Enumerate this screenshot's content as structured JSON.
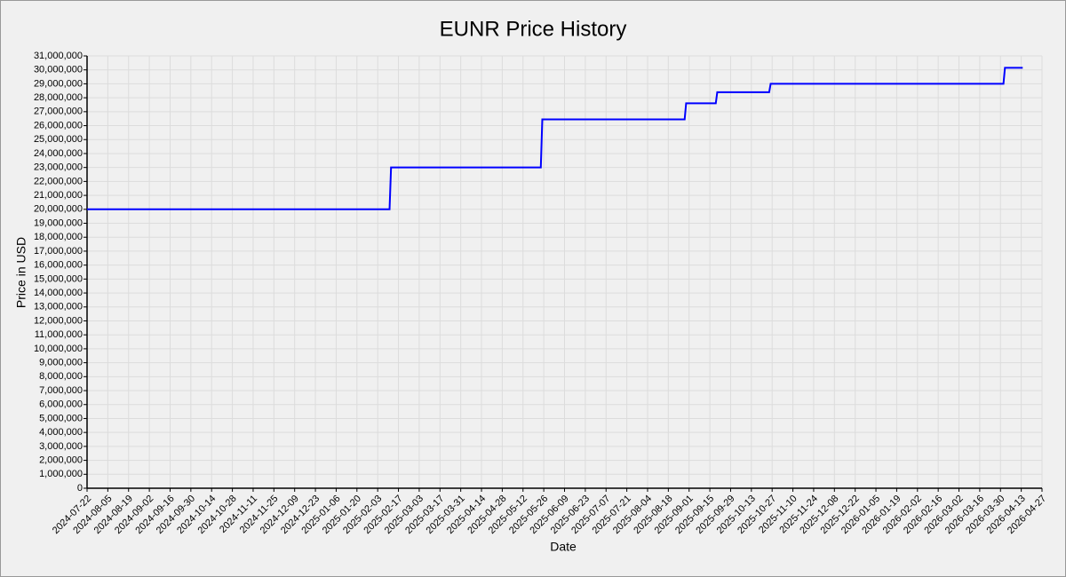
{
  "chart_data": {
    "type": "line",
    "title": "EUNR Price History",
    "x_label": "Date",
    "y_label": "Price in USD",
    "color": "#0000ff",
    "grid": true,
    "x": [
      "2024-07-22",
      "2025-02-11",
      "2025-02-12",
      "2025-05-24",
      "2025-05-25",
      "2025-08-29",
      "2025-08-30",
      "2025-09-19",
      "2025-09-20",
      "2025-10-25",
      "2025-10-26",
      "2026-04-01",
      "2026-04-02",
      "2026-04-14"
    ],
    "values": [
      20000000,
      20000000,
      23000000,
      23000000,
      26450000,
      26450000,
      27600000,
      27600000,
      28400000,
      28400000,
      29000000,
      29000000,
      30150000,
      30150000
    ],
    "xlim": [
      "2024-07-22",
      "2026-04-27"
    ],
    "xticks": [
      "2024-07-22",
      "2024-08-05",
      "2024-08-19",
      "2024-09-02",
      "2024-09-16",
      "2024-09-30",
      "2024-10-14",
      "2024-10-28",
      "2024-11-11",
      "2024-11-25",
      "2024-12-09",
      "2024-12-23",
      "2025-01-06",
      "2025-01-20",
      "2025-02-03",
      "2025-02-17",
      "2025-03-03",
      "2025-03-17",
      "2025-03-31",
      "2025-04-14",
      "2025-04-28",
      "2025-05-12",
      "2025-05-26",
      "2025-06-09",
      "2025-06-23",
      "2025-07-07",
      "2025-07-21",
      "2025-08-04",
      "2025-08-18",
      "2025-09-01",
      "2025-09-15",
      "2025-09-29",
      "2025-10-13",
      "2025-10-27",
      "2025-11-10",
      "2025-11-24",
      "2025-12-08",
      "2025-12-22",
      "2026-01-05",
      "2026-01-19",
      "2026-02-02",
      "2026-02-16",
      "2026-03-02",
      "2026-03-16",
      "2026-03-30",
      "2026-04-13",
      "2026-04-27"
    ],
    "ylim": [
      0,
      31000000
    ],
    "yticks": [
      0,
      {
        "value": 1000000,
        "label": "1,000,000"
      },
      {
        "value": 2000000,
        "label": "2,000,000"
      },
      {
        "value": 3000000,
        "label": "3,000,000"
      },
      {
        "value": 4000000,
        "label": "4,000,000"
      },
      {
        "value": 5000000,
        "label": "5,000,000"
      },
      {
        "value": 6000000,
        "label": "6,000,000"
      },
      {
        "value": 7000000,
        "label": "7,000,000"
      },
      {
        "value": 8000000,
        "label": "8,000,000"
      },
      {
        "value": 9000000,
        "label": "9,000,000"
      },
      {
        "value": 10000000,
        "label": "10,000,000"
      },
      {
        "value": 11000000,
        "label": "11,000,000"
      },
      {
        "value": 12000000,
        "label": "12,000,000"
      },
      {
        "value": 13000000,
        "label": "13,000,000"
      },
      {
        "value": 14000000,
        "label": "14,000,000"
      },
      {
        "value": 15000000,
        "label": "15,000,000"
      },
      {
        "value": 16000000,
        "label": "16,000,000"
      },
      {
        "value": 17000000,
        "label": "17,000,000"
      },
      {
        "value": 18000000,
        "label": "18,000,000"
      },
      {
        "value": 19000000,
        "label": "19,000,000"
      },
      {
        "value": 20000000,
        "label": "20,000,000"
      },
      {
        "value": 21000000,
        "label": "21,000,000"
      },
      {
        "value": 22000000,
        "label": "22,000,000"
      },
      {
        "value": 23000000,
        "label": "23,000,000"
      },
      {
        "value": 24000000,
        "label": "24,000,000"
      },
      {
        "value": 25000000,
        "label": "25,000,000"
      },
      {
        "value": 26000000,
        "label": "26,000,000"
      },
      {
        "value": 27000000,
        "label": "27,000,000"
      },
      {
        "value": 28000000,
        "label": "28,000,000"
      },
      {
        "value": 29000000,
        "label": "29,000,000"
      },
      {
        "value": 30000000,
        "label": "30,000,000"
      },
      {
        "value": 31000000,
        "label": "31,000,000"
      }
    ]
  }
}
